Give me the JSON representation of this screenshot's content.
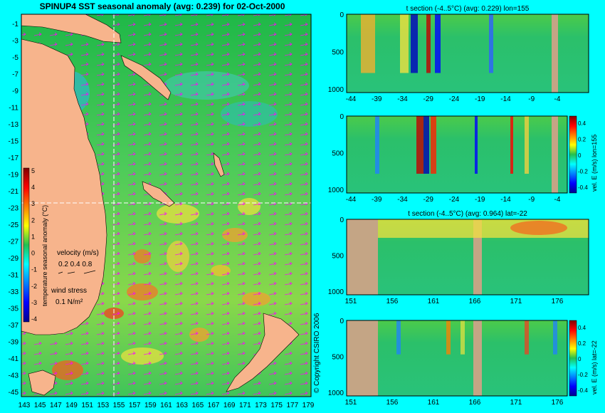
{
  "colors": {
    "background": "#00FFFF",
    "land": "#F7B48C",
    "section_land": "#C4A585",
    "ocean_base": "#2DBE55",
    "vector": "#FF00FF"
  },
  "map": {
    "title": "SPINUP4 SST seasonal anomaly (avg: 0.239) for 02-Oct-2000",
    "lat_ticks": [
      "-1",
      "-3",
      "-5",
      "-7",
      "-9",
      "-11",
      "-13",
      "-15",
      "-17",
      "-19",
      "-21",
      "-23",
      "-25",
      "-27",
      "-29",
      "-31",
      "-33",
      "-35",
      "-37",
      "-39",
      "-41",
      "-43",
      "-45"
    ],
    "lon_ticks": [
      "143",
      "145",
      "147",
      "149",
      "151",
      "153",
      "155",
      "157",
      "159",
      "161",
      "163",
      "165",
      "167",
      "169",
      "171",
      "173",
      "175",
      "177",
      "179"
    ],
    "colorbar_label": "temperature seasonal anomaly (°C)",
    "colorbar_ticks": [
      "5",
      "4",
      "3",
      "2",
      "1",
      "0",
      "-1",
      "-2",
      "-3",
      "-4"
    ],
    "colorbar_range": [
      -4,
      5
    ],
    "velocity_legend": {
      "title": "velocity (m/s)",
      "values": "0.2 0.4 0.8",
      "stress_title": "wind stress",
      "stress_value": "0.1 N/m²"
    },
    "copyright": "© Copyright CSIRO 2006"
  },
  "sections": [
    {
      "title": "t section (-4..5°C) (avg: 0.229) lon=155",
      "x_ticks": [
        "-44",
        "-39",
        "-34",
        "-29",
        "-24",
        "-19",
        "-14",
        "-9",
        "-4"
      ],
      "y_ticks": [
        "0",
        "500",
        "1000"
      ],
      "has_colorbar": false
    },
    {
      "title": "",
      "x_ticks": [
        "-44",
        "-39",
        "-34",
        "-29",
        "-24",
        "-19",
        "-14",
        "-9",
        "-4"
      ],
      "y_ticks": [
        "0",
        "500",
        "1000"
      ],
      "has_colorbar": true,
      "colorbar_label": "vel. E (m/s) lon=155",
      "colorbar_ticks": [
        "0.4",
        "0.2",
        "0",
        "-0.2",
        "-0.4"
      ]
    },
    {
      "title": "t section (-4..5°C) (avg: 0.964) lat=-22",
      "x_ticks": [
        "151",
        "156",
        "161",
        "166",
        "171",
        "176"
      ],
      "y_ticks": [
        "0",
        "500",
        "1000"
      ],
      "has_colorbar": false
    },
    {
      "title": "",
      "x_ticks": [
        "151",
        "156",
        "161",
        "166",
        "171",
        "176"
      ],
      "y_ticks": [
        "0",
        "500",
        "1000"
      ],
      "has_colorbar": true,
      "colorbar_label": "vel. E (m/s) lat=-22",
      "colorbar_ticks": [
        "0.4",
        "0.2",
        "0",
        "-0.2",
        "-0.4"
      ]
    }
  ],
  "chart_data": [
    {
      "type": "heatmap",
      "title": "SPINUP4 SST seasonal anomaly (avg: 0.239) for 02-Oct-2000",
      "xlabel": "",
      "ylabel": "",
      "xlim": [
        143,
        180
      ],
      "ylim": [
        -45,
        0
      ],
      "colorbar_range": [
        -4,
        5
      ]
    },
    {
      "type": "heatmap",
      "title": "t section (-4..5°C) (avg: 0.229) lon=155",
      "xlim": [
        -46,
        0
      ],
      "ylim": [
        1050,
        0
      ],
      "colorbar_range": [
        -4,
        5
      ]
    },
    {
      "type": "heatmap",
      "title": "",
      "colorbar_label": "vel. E (m/s) lon=155",
      "xlim": [
        -46,
        0
      ],
      "ylim": [
        1050,
        0
      ],
      "colorbar_range": [
        -0.4,
        0.4
      ]
    },
    {
      "type": "heatmap",
      "title": "t section (-4..5°C) (avg: 0.964) lat=-22",
      "xlim": [
        150,
        180
      ],
      "ylim": [
        1050,
        0
      ],
      "colorbar_range": [
        -4,
        5
      ]
    },
    {
      "type": "heatmap",
      "title": "",
      "colorbar_label": "vel. E (m/s) lat=-22",
      "xlim": [
        150,
        180
      ],
      "ylim": [
        1050,
        0
      ],
      "colorbar_range": [
        -0.4,
        0.4
      ]
    }
  ]
}
